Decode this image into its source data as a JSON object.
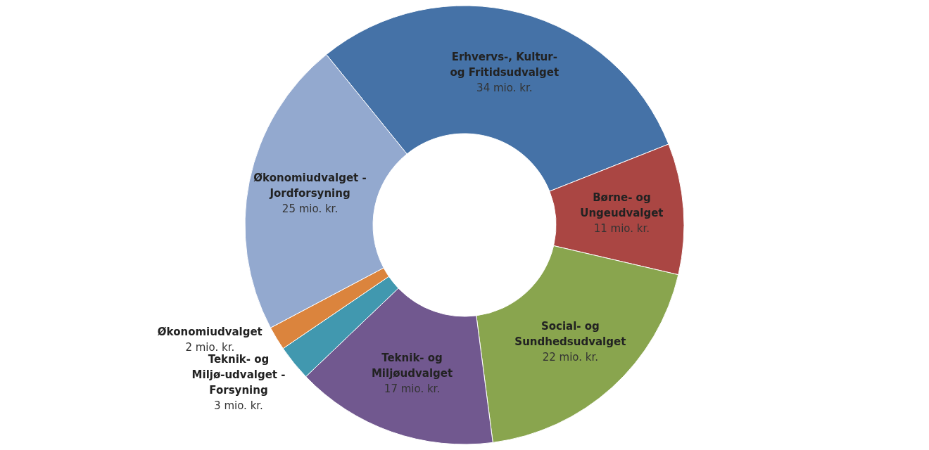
{
  "chart_data": {
    "type": "donut",
    "categories": [
      "Erhvervs-, Kultur- og Fritidsudvalget",
      "Børne- og Ungeudvalget",
      "Social- og Sundhedsudvalget",
      "Teknik- og Miljøudvalget",
      "Teknik- og Miljø-udvalget - Forsyning",
      "Økonomiudvalget",
      "Økonomiudvalget - Jordforsyning"
    ],
    "values": [
      34,
      11,
      22,
      17,
      3,
      2,
      25
    ],
    "colors": [
      "#4572a7",
      "#aa4643",
      "#89a54e",
      "#71588f",
      "#4198af",
      "#db843d",
      "#93a9cf"
    ],
    "value_labels": [
      "34 mio. kr.",
      "11 mio. kr.",
      "22 mio. kr.",
      "17 mio. kr.",
      "3 mio. kr.",
      "2 mio. kr.",
      "25 mio. kr."
    ]
  }
}
